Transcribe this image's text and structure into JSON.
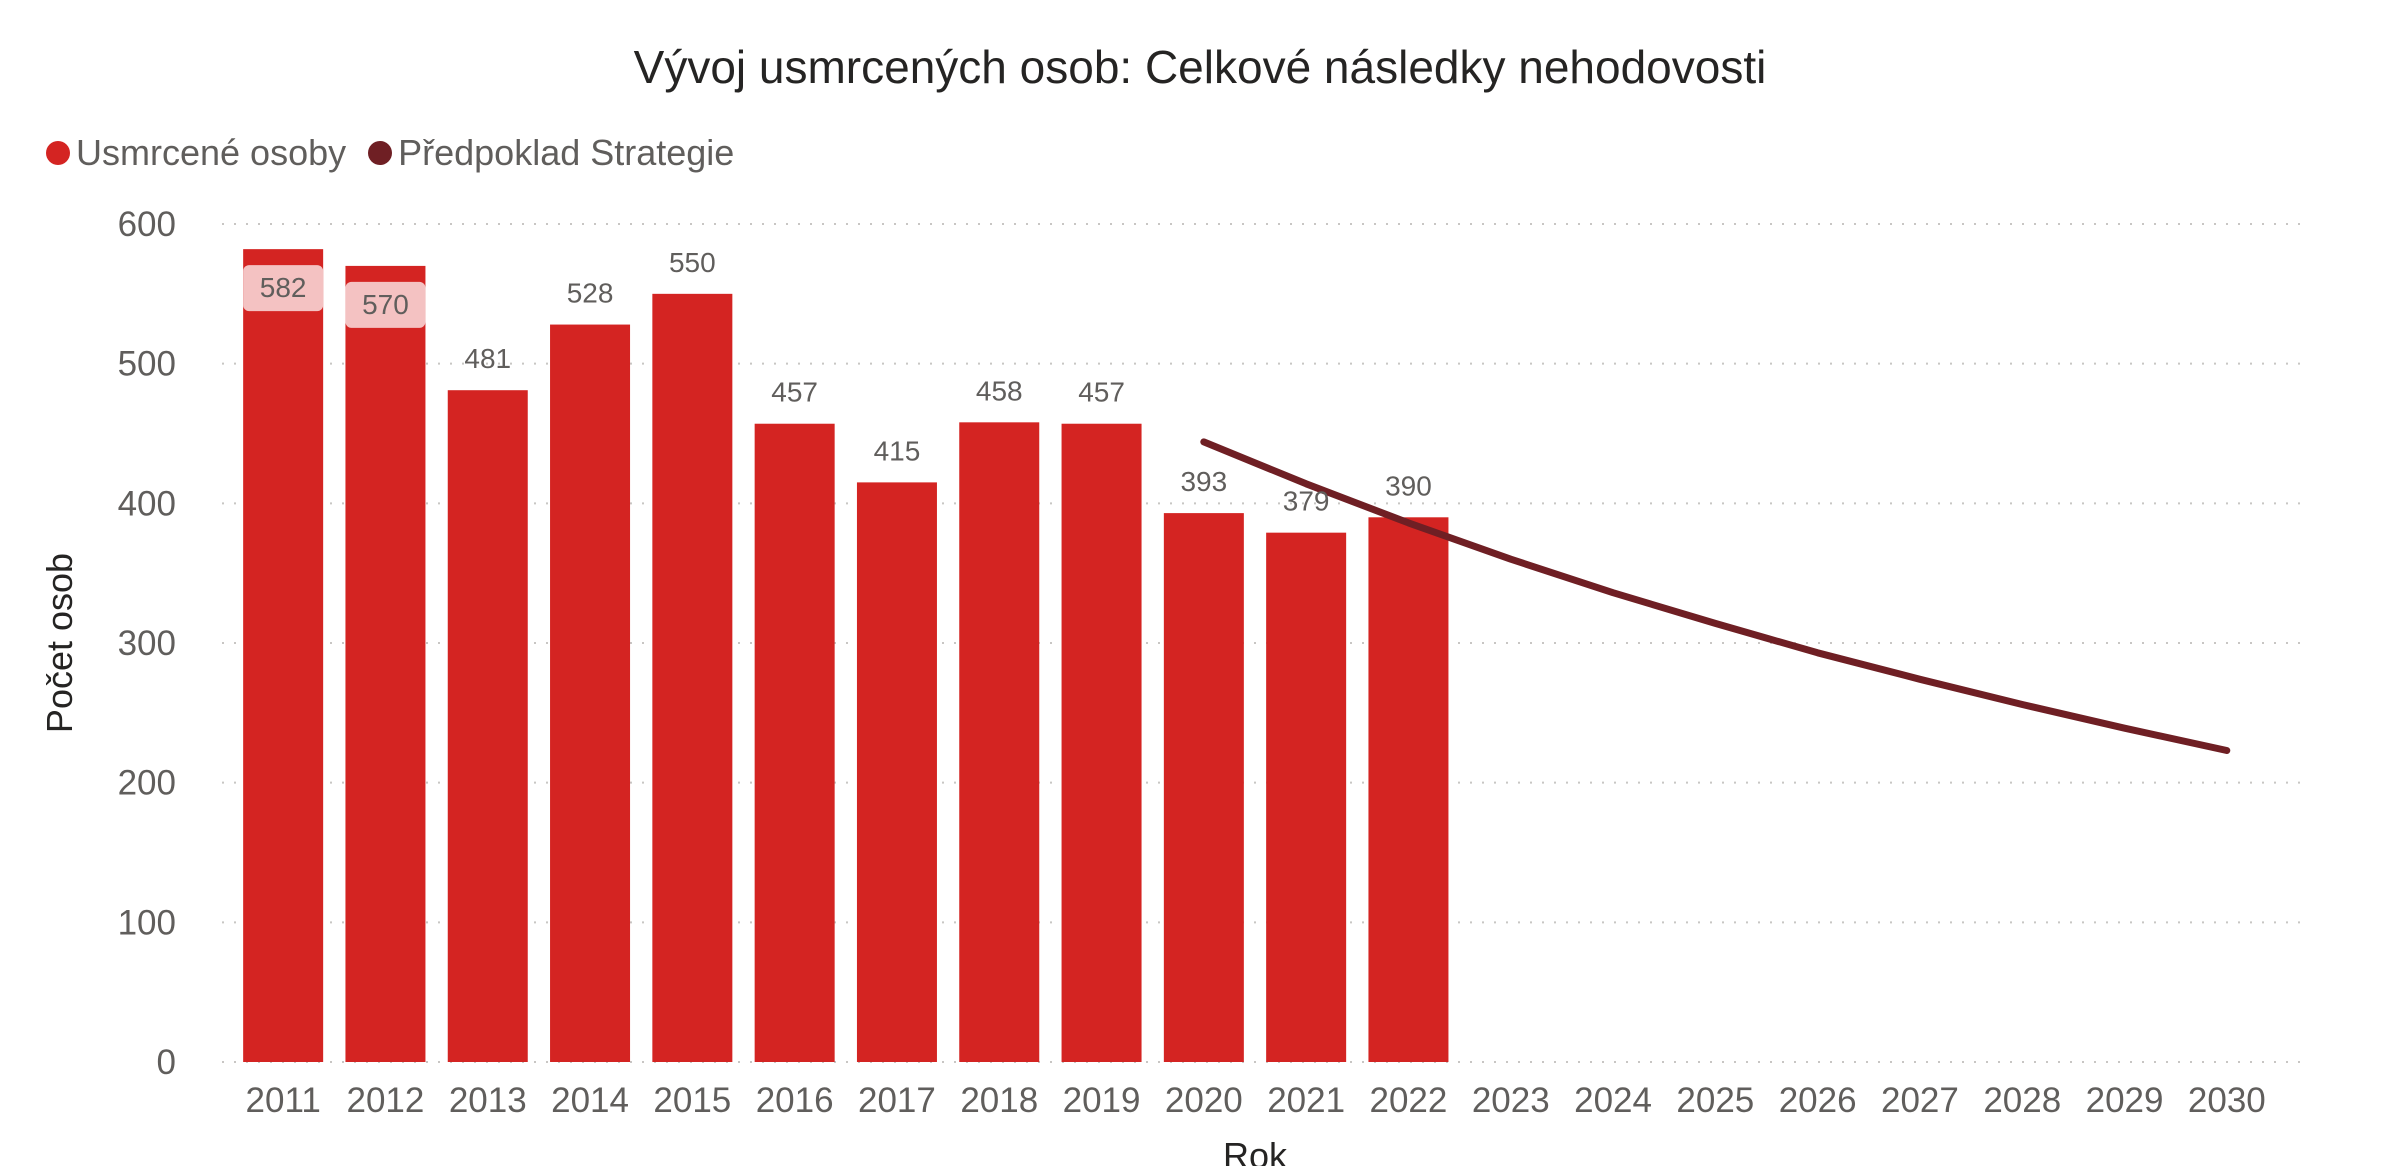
{
  "chart_data": {
    "type": "bar",
    "title": "Vývoj usmrcených osob: Celkové následky nehodovosti",
    "xlabel": "Rok",
    "ylabel": "Počet osob",
    "ylim": [
      0,
      600
    ],
    "yticks": [
      0,
      100,
      200,
      300,
      400,
      500,
      600
    ],
    "grid": true,
    "legend_position": "top-left",
    "categories": [
      "2011",
      "2012",
      "2013",
      "2014",
      "2015",
      "2016",
      "2017",
      "2018",
      "2019",
      "2020",
      "2021",
      "2022",
      "2023",
      "2024",
      "2025",
      "2026",
      "2027",
      "2028",
      "2029",
      "2030"
    ],
    "series": [
      {
        "name": "Usmrcené osoby",
        "type": "bar",
        "color": "#d42422",
        "values": [
          582,
          570,
          481,
          528,
          550,
          457,
          415,
          458,
          457,
          393,
          379,
          390,
          null,
          null,
          null,
          null,
          null,
          null,
          null,
          null
        ]
      },
      {
        "name": "Předpoklad Strategie",
        "type": "line",
        "color": "#6f1f24",
        "values": [
          null,
          null,
          null,
          null,
          null,
          null,
          null,
          null,
          null,
          444,
          414,
          386,
          360,
          336,
          314,
          293,
          274,
          256,
          239,
          223
        ]
      }
    ]
  }
}
